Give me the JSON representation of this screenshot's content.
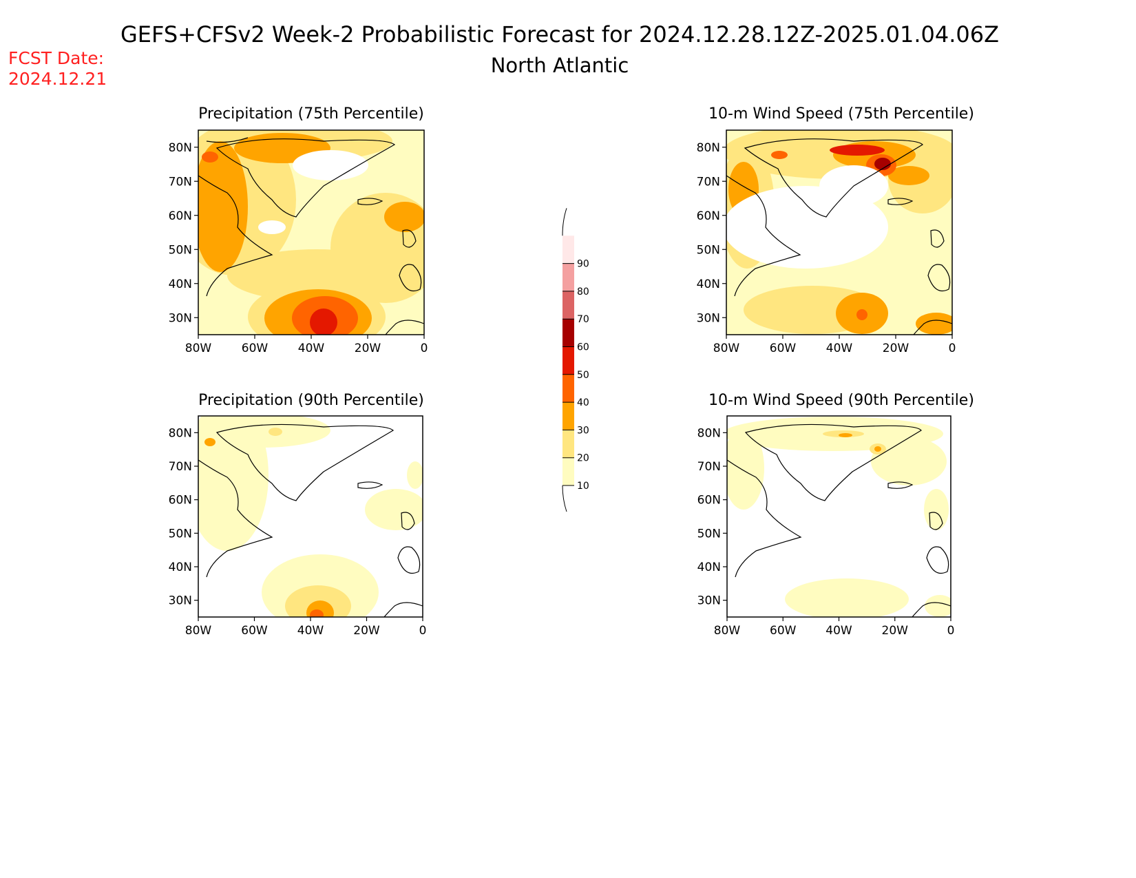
{
  "header": {
    "title": "GEFS+CFSv2 Week-2 Probabilistic Forecast for 2024.12.28.12Z-2025.01.04.06Z",
    "subtitle": "North Atlantic",
    "fcst_label": "FCST Date:",
    "fcst_date": "2024.12.21",
    "fcst_color": "#ff2020"
  },
  "panels": [
    {
      "title": "Precipitation (75th Percentile)",
      "variable": "precip",
      "level": "p75"
    },
    {
      "title": "10-m Wind Speed (75th Percentile)",
      "variable": "wind",
      "level": "p75"
    },
    {
      "title": "Precipitation (90th Percentile)",
      "variable": "precip",
      "level": "p90"
    },
    {
      "title": "10-m Wind Speed (90th Percentile)",
      "variable": "wind",
      "level": "p90"
    }
  ],
  "axes": {
    "lat_ticks": [
      "30N",
      "40N",
      "50N",
      "60N",
      "70N",
      "80N"
    ],
    "lon_ticks": [
      "80W",
      "60W",
      "40W",
      "20W",
      "0"
    ],
    "lat_range": [
      25,
      85
    ],
    "lon_range": [
      -80,
      0
    ]
  },
  "colorbar": {
    "levels": [
      "10",
      "20",
      "30",
      "40",
      "50",
      "60",
      "70",
      "80",
      "90"
    ],
    "colors": [
      "#fffcc0",
      "#ffe680",
      "#ffa400",
      "#ff6400",
      "#e41800",
      "#a60000",
      "#dc6464",
      "#f4a0a0",
      "#ffe8e8"
    ]
  }
}
